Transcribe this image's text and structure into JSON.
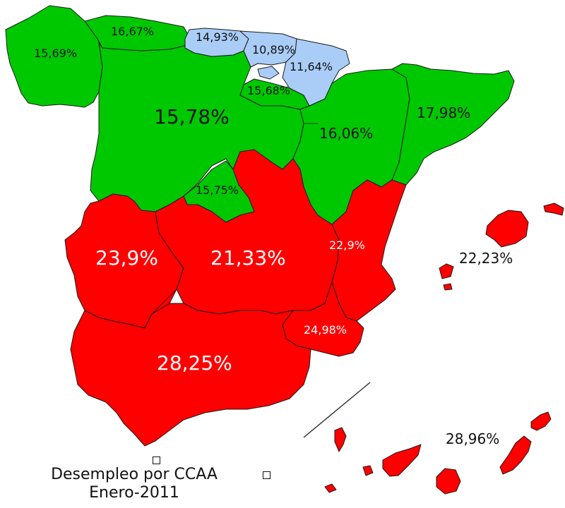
{
  "colors": {
    "high": "#ff0000",
    "mid": "#00c800",
    "low": "#a9cdf7",
    "border": "#1a1a1a"
  },
  "labels": {
    "asturias": "16,67%",
    "galicia": "15,69%",
    "cantabria": "14,93%",
    "pais_vasco": "10,89%",
    "navarra": "11,64%",
    "la_rioja": "15,68%",
    "castilla_leon": "15,78%",
    "aragon": "16,06%",
    "cataluna": "17,98%",
    "madrid": "15,75%",
    "extremadura": "23,9%",
    "castilla_la_mancha": "21,33%",
    "valencia": "22,9%",
    "baleares": "22,23%",
    "murcia": "24,98%",
    "andalucia": "28,25%",
    "canarias": "28,96%"
  },
  "caption": {
    "line1": "Desempleo por CCAA",
    "line2": "Enero-2011"
  }
}
